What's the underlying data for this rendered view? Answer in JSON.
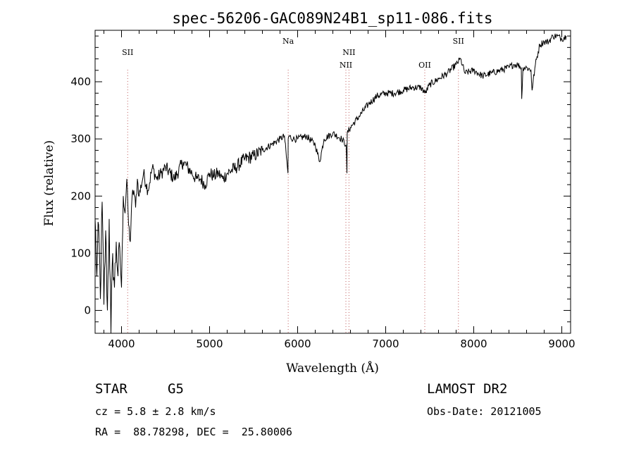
{
  "chart_data": {
    "type": "line",
    "title": "spec-56206-GAC089N24B1_sp11-086.fits",
    "xlabel": "Wavelength (Å)",
    "ylabel": "Flux (relative)",
    "xlim": [
      3700,
      9100
    ],
    "ylim": [
      -40,
      490
    ],
    "xticks": [
      4000,
      5000,
      6000,
      7000,
      8000,
      9000
    ],
    "yticks": [
      0,
      100,
      200,
      300,
      400
    ],
    "grid": false,
    "series": [
      {
        "color": "#000000",
        "x": [
          3700,
          3720,
          3740,
          3760,
          3780,
          3800,
          3820,
          3840,
          3860,
          3880,
          3900,
          3920,
          3940,
          3960,
          3980,
          4000,
          4020,
          4040,
          4060,
          4080,
          4100,
          4120,
          4140,
          4160,
          4180,
          4200,
          4250,
          4300,
          4350,
          4400,
          4450,
          4500,
          4600,
          4700,
          4800,
          4850,
          4900,
          4950,
          5000,
          5050,
          5100,
          5150,
          5200,
          5300,
          5400,
          5500,
          5600,
          5700,
          5800,
          5850,
          5890,
          5893,
          5900,
          5950,
          6000,
          6100,
          6200,
          6250,
          6300,
          6400,
          6500,
          6550,
          6560,
          6563,
          6600,
          6700,
          6800,
          6900,
          7000,
          7100,
          7200,
          7300,
          7400,
          7450,
          7500,
          7600,
          7700,
          7800,
          7850,
          7900,
          8000,
          8100,
          8200,
          8300,
          8400,
          8450,
          8500,
          8540,
          8545,
          8560,
          8600,
          8650,
          8662,
          8700,
          8750,
          8800,
          8850,
          8900,
          8950,
          9000,
          9050
        ],
        "y": [
          160,
          60,
          150,
          20,
          190,
          10,
          140,
          0,
          160,
          -40,
          100,
          40,
          120,
          60,
          110,
          40,
          200,
          170,
          230,
          150,
          120,
          200,
          210,
          180,
          230,
          200,
          240,
          210,
          250,
          230,
          240,
          250,
          230,
          260,
          240,
          230,
          230,
          220,
          240,
          235,
          240,
          230,
          240,
          250,
          265,
          270,
          280,
          290,
          300,
          305,
          240,
          300,
          305,
          300,
          300,
          305,
          290,
          260,
          300,
          310,
          300,
          290,
          240,
          310,
          320,
          340,
          360,
          375,
          380,
          380,
          385,
          390,
          390,
          380,
          395,
          405,
          415,
          430,
          440,
          415,
          420,
          410,
          415,
          420,
          425,
          430,
          430,
          425,
          370,
          425,
          425,
          420,
          385,
          430,
          465,
          470,
          470,
          480,
          480,
          475,
          480
        ]
      }
    ],
    "annotations": [
      {
        "label": "SII",
        "x": 4070,
        "row": 1
      },
      {
        "label": "Na",
        "x": 5893,
        "row": 0
      },
      {
        "label": "NII",
        "x": 6548,
        "row": 2
      },
      {
        "label": "NII",
        "x": 6583,
        "row": 1
      },
      {
        "label": "OII",
        "x": 7444,
        "row": 2
      },
      {
        "label": "SII",
        "x": 7826,
        "row": 0
      }
    ]
  },
  "info": {
    "object_class": "STAR",
    "subclass": "G5",
    "survey": "LAMOST DR2",
    "cz": "cz = 5.8 ± 2.8 km/s",
    "obs_date": "Obs-Date: 20121005",
    "coords": "RA =  88.78298, DEC =  25.80006"
  }
}
